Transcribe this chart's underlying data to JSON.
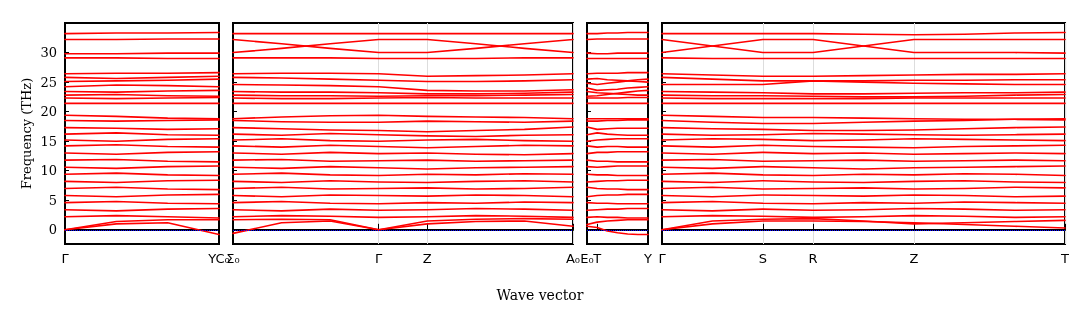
{
  "chart_data": [
    {
      "type": "line",
      "ylabel": "Frequency (THz)",
      "categories": [
        "Γ",
        null,
        null,
        "YC₀"
      ],
      "ylim": [
        -2.4,
        35
      ],
      "yticks": [
        0,
        5,
        10,
        15,
        20,
        25,
        30
      ],
      "marker": "none",
      "line_style": "solid",
      "ref_lines": [
        {
          "axis": "y",
          "value": 0,
          "color": "#0000ff",
          "line_style": "dotted"
        }
      ],
      "series": [
        {
          "color": "#ff0000",
          "values": [
            0,
            1.0,
            1.2,
            -0.8
          ]
        },
        {
          "color": "#ff0000",
          "values": [
            0,
            1.4,
            1.7,
            1.7
          ]
        },
        {
          "color": "#ff0000",
          "values": [
            33.2,
            33.3,
            33.3,
            33.4
          ]
        },
        {
          "color": "#ff0000",
          "values": [
            32.2,
            32.2,
            32.3,
            32.3
          ]
        },
        {
          "color": "#ff0000",
          "values": [
            29.8,
            29.8,
            29.9,
            29.9
          ]
        },
        {
          "color": "#ff0000",
          "values": [
            29.1,
            29.1,
            29.0,
            29.0
          ]
        },
        {
          "color": "#ff0000",
          "values": [
            26.4,
            26.5,
            26.5,
            26.6
          ]
        },
        {
          "color": "#ff0000",
          "values": [
            25.8,
            25.6,
            25.8,
            26.0
          ]
        },
        {
          "color": "#ff0000",
          "values": [
            25.1,
            25.2,
            25.3,
            25.5
          ]
        },
        {
          "color": "#ff0000",
          "values": [
            24.2,
            24.5,
            24.4,
            24.2
          ]
        },
        {
          "color": "#ff0000",
          "values": [
            23.4,
            23.3,
            23.5,
            23.6
          ]
        },
        {
          "color": "#ff0000",
          "values": [
            22.8,
            22.9,
            22.7,
            22.6
          ]
        },
        {
          "color": "#ff0000",
          "values": [
            22.3,
            22.2,
            22.3,
            22.4
          ]
        },
        {
          "color": "#ff0000",
          "values": [
            21.4,
            21.4,
            21.4,
            21.4
          ]
        },
        {
          "color": "#ff0000",
          "values": [
            19.4,
            19.2,
            18.9,
            18.8
          ]
        },
        {
          "color": "#ff0000",
          "values": [
            18.5,
            18.4,
            18.5,
            18.6
          ]
        },
        {
          "color": "#ff0000",
          "values": [
            17.3,
            17.2,
            17.0,
            17.1
          ]
        },
        {
          "color": "#ff0000",
          "values": [
            16.2,
            16.4,
            16.1,
            16.0
          ]
        },
        {
          "color": "#ff0000",
          "values": [
            15.2,
            15.0,
            15.3,
            15.4
          ]
        },
        {
          "color": "#ff0000",
          "values": [
            14.2,
            14.4,
            14.1,
            14.0
          ]
        },
        {
          "color": "#ff0000",
          "values": [
            13.0,
            12.8,
            13.1,
            13.2
          ]
        },
        {
          "color": "#ff0000",
          "values": [
            11.8,
            11.9,
            11.6,
            11.5
          ]
        },
        {
          "color": "#ff0000",
          "values": [
            10.6,
            10.4,
            10.7,
            10.8
          ]
        },
        {
          "color": "#ff0000",
          "values": [
            9.4,
            9.6,
            9.3,
            9.2
          ]
        },
        {
          "color": "#ff0000",
          "values": [
            8.2,
            8.0,
            8.3,
            8.4
          ]
        },
        {
          "color": "#ff0000",
          "values": [
            7.0,
            7.2,
            6.9,
            6.8
          ]
        },
        {
          "color": "#ff0000",
          "values": [
            5.8,
            5.6,
            5.9,
            6.0
          ]
        },
        {
          "color": "#ff0000",
          "values": [
            4.6,
            4.8,
            4.5,
            4.4
          ]
        },
        {
          "color": "#ff0000",
          "values": [
            3.4,
            3.2,
            3.5,
            3.6
          ]
        },
        {
          "color": "#ff0000",
          "values": [
            2.2,
            2.4,
            2.2,
            2.0
          ]
        }
      ]
    },
    {
      "type": "line",
      "categories": [
        "Σ₀",
        null,
        null,
        "Γ",
        "Z",
        null,
        null,
        "A₀"
      ],
      "ylim": [
        -2.4,
        35
      ],
      "yticks": [
        0,
        5,
        10,
        15,
        20,
        25,
        30
      ],
      "tick_labels": "x",
      "grid": "x",
      "marker": "none",
      "line_style": "solid",
      "ref_lines": [
        {
          "axis": "y",
          "value": 0,
          "color": "#0000ff",
          "line_style": "dotted"
        }
      ],
      "series": [
        {
          "color": "#ff0000",
          "values": [
            -0.6,
            1.2,
            1.5,
            0,
            1.0,
            1.4,
            1.5,
            0.6
          ]
        },
        {
          "color": "#ff0000",
          "values": [
            1.7,
            1.8,
            1.7,
            0,
            1.5,
            1.8,
            1.9,
            1.8
          ]
        },
        {
          "color": "#ff0000",
          "values": [
            33.2,
            33.2,
            33.2,
            33.2,
            33.2,
            33.2,
            33.2,
            33.2
          ]
        },
        {
          "color": "#ff0000",
          "values": [
            32.2,
            31.5,
            30.7,
            30.0,
            30.0,
            30.7,
            31.5,
            32.2
          ]
        },
        {
          "color": "#ff0000",
          "values": [
            30.0,
            30.7,
            31.5,
            32.2,
            32.2,
            31.5,
            30.7,
            30.0
          ]
        },
        {
          "color": "#ff0000",
          "values": [
            29.1,
            29.1,
            29.1,
            29.0,
            29.0,
            29.0,
            29.1,
            29.1
          ]
        },
        {
          "color": "#ff0000",
          "values": [
            26.4,
            26.5,
            26.5,
            26.4,
            26.0,
            26.1,
            26.2,
            26.4
          ]
        },
        {
          "color": "#ff0000",
          "values": [
            25.8,
            25.7,
            25.5,
            25.3,
            25.1,
            25.1,
            25.2,
            25.4
          ]
        },
        {
          "color": "#ff0000",
          "values": [
            24.6,
            24.5,
            24.4,
            24.2,
            23.6,
            23.5,
            23.5,
            23.7
          ]
        },
        {
          "color": "#ff0000",
          "values": [
            23.4,
            23.3,
            23.3,
            23.2,
            23.0,
            23.0,
            23.1,
            23.3
          ]
        },
        {
          "color": "#ff0000",
          "values": [
            22.8,
            22.7,
            22.7,
            22.6,
            22.7,
            22.7,
            22.8,
            22.9
          ]
        },
        {
          "color": "#ff0000",
          "values": [
            22.3,
            22.2,
            22.2,
            22.3,
            22.4,
            22.3,
            22.3,
            22.3
          ]
        },
        {
          "color": "#ff0000",
          "values": [
            21.4,
            21.4,
            21.4,
            21.4,
            21.4,
            21.4,
            21.4,
            21.4
          ]
        },
        {
          "color": "#ff0000",
          "values": [
            18.8,
            19.1,
            19.3,
            19.4,
            19.2,
            19.1,
            19.0,
            18.8
          ]
        },
        {
          "color": "#ff0000",
          "values": [
            18.5,
            18.3,
            18.2,
            18.2,
            18.4,
            18.3,
            18.2,
            18.4
          ]
        },
        {
          "color": "#ff0000",
          "values": [
            17.3,
            17.1,
            16.9,
            16.8,
            16.6,
            16.8,
            17.0,
            17.4
          ]
        },
        {
          "color": "#ff0000",
          "values": [
            16.2,
            16.0,
            16.3,
            16.1,
            15.9,
            15.8,
            16.0,
            16.1
          ]
        },
        {
          "color": "#ff0000",
          "values": [
            15.2,
            15.4,
            15.1,
            15.0,
            15.2,
            15.3,
            15.1,
            15.0
          ]
        },
        {
          "color": "#ff0000",
          "values": [
            14.2,
            14.0,
            14.3,
            14.1,
            13.9,
            14.1,
            14.3,
            14.2
          ]
        },
        {
          "color": "#ff0000",
          "values": [
            13.0,
            12.8,
            13.1,
            12.9,
            13.0,
            12.8,
            12.7,
            12.9
          ]
        },
        {
          "color": "#ff0000",
          "values": [
            11.8,
            11.9,
            11.6,
            11.7,
            11.8,
            11.6,
            11.7,
            11.8
          ]
        },
        {
          "color": "#ff0000",
          "values": [
            10.6,
            10.4,
            10.7,
            10.5,
            10.3,
            10.5,
            10.6,
            10.7
          ]
        },
        {
          "color": "#ff0000",
          "values": [
            9.4,
            9.6,
            9.3,
            9.2,
            9.4,
            9.3,
            9.5,
            9.4
          ]
        },
        {
          "color": "#ff0000",
          "values": [
            8.2,
            8.0,
            8.3,
            8.1,
            8.0,
            8.2,
            8.3,
            8.1
          ]
        },
        {
          "color": "#ff0000",
          "values": [
            7.0,
            7.2,
            6.9,
            7.0,
            7.1,
            6.9,
            7.0,
            7.2
          ]
        },
        {
          "color": "#ff0000",
          "values": [
            5.8,
            5.6,
            5.9,
            5.8,
            5.7,
            5.9,
            5.8,
            5.6
          ]
        },
        {
          "color": "#ff0000",
          "values": [
            4.6,
            4.8,
            4.5,
            4.4,
            4.6,
            4.5,
            4.7,
            4.6
          ]
        },
        {
          "color": "#ff0000",
          "values": [
            3.4,
            3.2,
            3.5,
            3.3,
            3.4,
            3.6,
            3.5,
            3.3
          ]
        },
        {
          "color": "#ff0000",
          "values": [
            2.2,
            2.4,
            2.3,
            2.1,
            2.2,
            2.4,
            2.3,
            2.1
          ]
        }
      ]
    },
    {
      "type": "line",
      "xlabel": "Wave vector",
      "categories": [
        "E₀",
        "T",
        null,
        null,
        null,
        null,
        "Y"
      ],
      "ylim": [
        -2.4,
        35
      ],
      "yticks": [
        0,
        5,
        10,
        15,
        20,
        25,
        30
      ],
      "tick_labels": "x",
      "marker": "none",
      "line_style": "solid",
      "ref_lines": [
        {
          "axis": "y",
          "value": 0,
          "color": "#0000ff",
          "line_style": "dotted"
        }
      ],
      "series": [
        {
          "color": "#ff0000",
          "values": [
            0.6,
            0.4,
            -0.2,
            -0.5,
            -0.7,
            -0.8,
            -0.8
          ]
        },
        {
          "color": "#ff0000",
          "values": [
            0.9,
            1.3,
            1.5,
            1.6,
            1.7,
            1.7,
            1.7
          ]
        },
        {
          "color": "#ff0000",
          "values": [
            33.2,
            33.2,
            33.3,
            33.3,
            33.4,
            33.4,
            33.4
          ]
        },
        {
          "color": "#ff0000",
          "values": [
            32.2,
            32.3,
            32.3,
            32.3,
            32.3,
            32.3,
            32.3
          ]
        },
        {
          "color": "#ff0000",
          "values": [
            29.9,
            29.8,
            29.8,
            29.9,
            29.9,
            29.9,
            29.9
          ]
        },
        {
          "color": "#ff0000",
          "values": [
            29.0,
            29.0,
            29.0,
            29.0,
            29.0,
            29.0,
            29.0
          ]
        },
        {
          "color": "#ff0000",
          "values": [
            26.4,
            26.5,
            26.5,
            26.5,
            26.6,
            26.6,
            26.6
          ]
        },
        {
          "color": "#ff0000",
          "values": [
            25.5,
            25.6,
            25.4,
            25.3,
            25.2,
            25.1,
            25.0
          ]
        },
        {
          "color": "#ff0000",
          "values": [
            24.8,
            24.6,
            24.8,
            25.0,
            25.2,
            25.4,
            25.5
          ]
        },
        {
          "color": "#ff0000",
          "values": [
            24.0,
            23.6,
            23.7,
            23.8,
            24.0,
            24.1,
            24.2
          ]
        },
        {
          "color": "#ff0000",
          "values": [
            23.4,
            23.2,
            23.1,
            23.0,
            22.9,
            22.8,
            22.8
          ]
        },
        {
          "color": "#ff0000",
          "values": [
            22.6,
            22.7,
            22.9,
            23.1,
            23.3,
            23.5,
            23.6
          ]
        },
        {
          "color": "#ff0000",
          "values": [
            22.3,
            22.3,
            22.3,
            22.3,
            22.4,
            22.4,
            22.4
          ]
        },
        {
          "color": "#ff0000",
          "values": [
            21.4,
            21.4,
            21.4,
            21.4,
            21.4,
            21.4,
            21.4
          ]
        },
        {
          "color": "#ff0000",
          "values": [
            18.8,
            18.8,
            18.8,
            18.8,
            18.8,
            18.8,
            18.8
          ]
        },
        {
          "color": "#ff0000",
          "values": [
            18.4,
            18.4,
            18.5,
            18.5,
            18.6,
            18.6,
            18.6
          ]
        },
        {
          "color": "#ff0000",
          "values": [
            17.4,
            17.0,
            17.1,
            17.2,
            17.2,
            17.2,
            17.2
          ]
        },
        {
          "color": "#ff0000",
          "values": [
            16.1,
            16.4,
            16.2,
            16.1,
            16.0,
            16.0,
            16.0
          ]
        },
        {
          "color": "#ff0000",
          "values": [
            15.0,
            15.2,
            15.3,
            15.4,
            15.4,
            15.4,
            15.4
          ]
        },
        {
          "color": "#ff0000",
          "values": [
            14.2,
            14.0,
            14.1,
            14.1,
            14.0,
            14.0,
            14.0
          ]
        },
        {
          "color": "#ff0000",
          "values": [
            12.9,
            13.1,
            13.1,
            13.2,
            13.2,
            13.2,
            13.2
          ]
        },
        {
          "color": "#ff0000",
          "values": [
            11.8,
            11.6,
            11.6,
            11.5,
            11.5,
            11.5,
            11.5
          ]
        },
        {
          "color": "#ff0000",
          "values": [
            10.7,
            10.6,
            10.7,
            10.8,
            10.8,
            10.8,
            10.8
          ]
        },
        {
          "color": "#ff0000",
          "values": [
            9.4,
            9.3,
            9.3,
            9.2,
            9.2,
            9.2,
            9.2
          ]
        },
        {
          "color": "#ff0000",
          "values": [
            8.1,
            8.2,
            8.3,
            8.3,
            8.4,
            8.4,
            8.4
          ]
        },
        {
          "color": "#ff0000",
          "values": [
            7.2,
            7.0,
            6.9,
            6.9,
            6.8,
            6.8,
            6.8
          ]
        },
        {
          "color": "#ff0000",
          "values": [
            5.6,
            5.8,
            5.9,
            5.9,
            6.0,
            6.0,
            6.0
          ]
        },
        {
          "color": "#ff0000",
          "values": [
            4.6,
            4.5,
            4.5,
            4.4,
            4.4,
            4.4,
            4.4
          ]
        },
        {
          "color": "#ff0000",
          "values": [
            3.3,
            3.4,
            3.5,
            3.5,
            3.6,
            3.6,
            3.6
          ]
        },
        {
          "color": "#ff0000",
          "values": [
            2.1,
            2.2,
            2.1,
            2.1,
            2.0,
            2.0,
            2.0
          ]
        }
      ]
    },
    {
      "type": "line",
      "categories": [
        "Γ",
        null,
        "S",
        "R",
        null,
        "Z",
        null,
        null,
        "T"
      ],
      "ylim": [
        -2.4,
        35
      ],
      "yticks": [
        0,
        5,
        10,
        15,
        20,
        25,
        30
      ],
      "tick_labels": "x",
      "grid": "x",
      "marker": "none",
      "line_style": "solid",
      "ref_lines": [
        {
          "axis": "y",
          "value": 0,
          "color": "#0000ff",
          "line_style": "dotted"
        }
      ],
      "series": [
        {
          "color": "#ff0000",
          "values": [
            0,
            1.0,
            1.5,
            1.5,
            1.4,
            1.2,
            0.9,
            0.6,
            0.3
          ]
        },
        {
          "color": "#ff0000",
          "values": [
            0,
            1.5,
            1.8,
            1.9,
            1.5,
            1.0,
            1.2,
            1.4,
            1.6
          ]
        },
        {
          "color": "#ff0000",
          "values": [
            33.2,
            33.2,
            33.2,
            33.2,
            33.1,
            33.0,
            33.1,
            33.3,
            33.4
          ]
        },
        {
          "color": "#ff0000",
          "values": [
            32.2,
            31.1,
            30.0,
            30.0,
            31.1,
            32.2,
            32.2,
            32.2,
            32.2
          ]
        },
        {
          "color": "#ff0000",
          "values": [
            30.0,
            31.1,
            32.2,
            32.2,
            31.1,
            30.0,
            30.0,
            30.0,
            29.9
          ]
        },
        {
          "color": "#ff0000",
          "values": [
            29.1,
            29.0,
            29.0,
            29.0,
            29.0,
            29.0,
            29.0,
            29.0,
            29.0
          ]
        },
        {
          "color": "#ff0000",
          "values": [
            26.4,
            26.2,
            26.0,
            26.0,
            26.1,
            26.2,
            26.3,
            26.3,
            26.4
          ]
        },
        {
          "color": "#ff0000",
          "values": [
            25.8,
            25.5,
            25.2,
            25.2,
            25.2,
            25.3,
            25.3,
            25.4,
            25.4
          ]
        },
        {
          "color": "#ff0000",
          "values": [
            24.6,
            24.6,
            24.6,
            25.2,
            25.0,
            24.8,
            24.7,
            24.6,
            24.6
          ]
        },
        {
          "color": "#ff0000",
          "values": [
            23.4,
            23.3,
            23.2,
            23.0,
            23.0,
            23.1,
            23.2,
            23.2,
            23.3
          ]
        },
        {
          "color": "#ff0000",
          "values": [
            22.8,
            22.7,
            22.7,
            22.6,
            22.5,
            22.5,
            22.6,
            22.8,
            22.9
          ]
        },
        {
          "color": "#ff0000",
          "values": [
            22.3,
            22.2,
            22.2,
            22.2,
            22.2,
            22.3,
            22.3,
            22.3,
            22.3
          ]
        },
        {
          "color": "#ff0000",
          "values": [
            21.4,
            21.4,
            21.4,
            21.4,
            21.4,
            21.4,
            21.4,
            21.4,
            21.4
          ]
        },
        {
          "color": "#ff0000",
          "values": [
            19.4,
            19.2,
            19.0,
            19.0,
            18.9,
            18.8,
            18.7,
            18.7,
            18.6
          ]
        },
        {
          "color": "#ff0000",
          "values": [
            18.5,
            18.2,
            18.0,
            18.0,
            18.2,
            18.4,
            18.5,
            18.7,
            18.8
          ]
        },
        {
          "color": "#ff0000",
          "values": [
            17.3,
            17.1,
            17.0,
            16.8,
            16.8,
            16.9,
            17.1,
            17.3,
            17.4
          ]
        },
        {
          "color": "#ff0000",
          "values": [
            16.2,
            16.0,
            16.1,
            16.3,
            16.2,
            16.1,
            16.0,
            16.1,
            16.2
          ]
        },
        {
          "color": "#ff0000",
          "values": [
            15.2,
            15.4,
            15.3,
            15.1,
            15.2,
            15.4,
            15.3,
            15.2,
            15.1
          ]
        },
        {
          "color": "#ff0000",
          "values": [
            14.2,
            14.0,
            14.3,
            14.1,
            14.0,
            13.9,
            14.1,
            14.2,
            14.3
          ]
        },
        {
          "color": "#ff0000",
          "values": [
            13.0,
            12.8,
            13.1,
            12.9,
            13.0,
            12.8,
            12.9,
            13.0,
            12.9
          ]
        },
        {
          "color": "#ff0000",
          "values": [
            11.8,
            11.9,
            11.6,
            11.7,
            11.8,
            11.6,
            11.7,
            11.8,
            11.7
          ]
        },
        {
          "color": "#ff0000",
          "values": [
            10.6,
            10.4,
            10.7,
            10.5,
            10.3,
            10.5,
            10.6,
            10.7,
            10.8
          ]
        },
        {
          "color": "#ff0000",
          "values": [
            9.4,
            9.6,
            9.3,
            9.2,
            9.4,
            9.3,
            9.5,
            9.4,
            9.2
          ]
        },
        {
          "color": "#ff0000",
          "values": [
            8.2,
            8.0,
            8.3,
            8.1,
            8.0,
            8.2,
            8.3,
            8.1,
            8.0
          ]
        },
        {
          "color": "#ff0000",
          "values": [
            7.0,
            7.2,
            6.9,
            7.0,
            7.1,
            6.9,
            7.0,
            7.2,
            7.1
          ]
        },
        {
          "color": "#ff0000",
          "values": [
            5.8,
            5.6,
            5.9,
            5.8,
            5.7,
            5.9,
            5.8,
            5.6,
            5.7
          ]
        },
        {
          "color": "#ff0000",
          "values": [
            4.6,
            4.8,
            4.5,
            4.4,
            4.6,
            4.5,
            4.7,
            4.6,
            4.5
          ]
        },
        {
          "color": "#ff0000",
          "values": [
            3.4,
            3.2,
            3.5,
            3.3,
            3.4,
            3.6,
            3.5,
            3.3,
            3.4
          ]
        },
        {
          "color": "#ff0000",
          "values": [
            2.2,
            2.4,
            2.3,
            2.1,
            2.2,
            2.4,
            2.3,
            2.1,
            2.2
          ]
        }
      ]
    }
  ]
}
